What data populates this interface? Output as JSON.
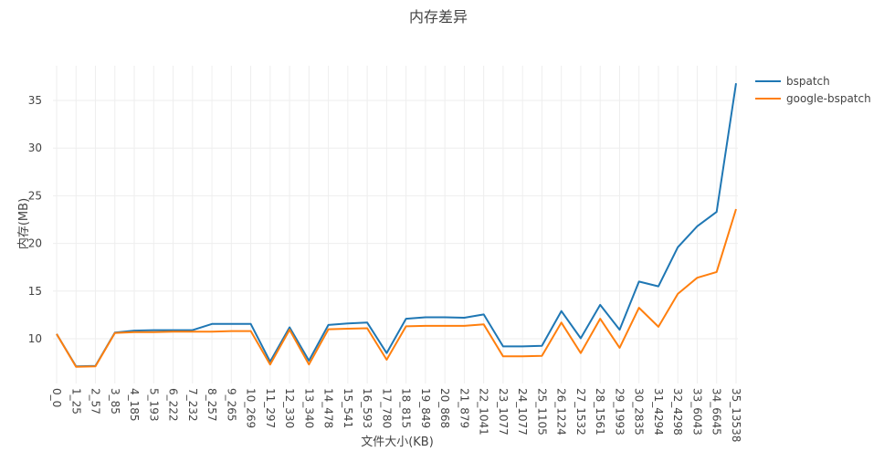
{
  "chart_data": {
    "type": "line",
    "title": "内存差异",
    "xlabel": "文件大小(KB)",
    "ylabel": "内存(MB)",
    "ylim": [
      6.0,
      38.0
    ],
    "yticks": [
      10,
      15,
      20,
      25,
      30,
      35
    ],
    "grid": true,
    "legend_position": "right-top",
    "categories": [
      "0_0",
      "1_25",
      "2_57",
      "3_85",
      "4_185",
      "5_193",
      "6_222",
      "7_232",
      "8_257",
      "9_265",
      "10_269",
      "11_297",
      "12_330",
      "13_340",
      "14_478",
      "15_541",
      "16_593",
      "17_780",
      "18_815",
      "19_849",
      "20_868",
      "21_879",
      "22_1041",
      "23_1077",
      "24_1077",
      "25_1105",
      "26_1224",
      "27_1532",
      "28_1561",
      "29_1993",
      "30_2835",
      "31_4294",
      "32_4298",
      "33_6043",
      "34_6645",
      "35_13538"
    ],
    "series": [
      {
        "name": "bspatch",
        "color": "#1f77b4",
        "values": [
          10.5,
          7.1,
          7.15,
          10.65,
          10.85,
          10.9,
          10.9,
          10.9,
          11.55,
          11.55,
          11.55,
          7.6,
          11.2,
          7.7,
          11.45,
          11.6,
          11.7,
          8.5,
          12.1,
          12.25,
          12.25,
          12.2,
          12.55,
          9.2,
          9.2,
          9.25,
          12.9,
          10.05,
          13.55,
          10.95,
          16.0,
          15.5,
          19.6,
          21.8,
          23.3,
          36.8
        ]
      },
      {
        "name": "google-bspatch",
        "color": "#ff7f0e",
        "values": [
          10.5,
          7.05,
          7.1,
          10.6,
          10.7,
          10.7,
          10.75,
          10.75,
          10.75,
          10.8,
          10.8,
          7.3,
          10.95,
          7.3,
          11.0,
          11.05,
          11.1,
          7.8,
          11.3,
          11.35,
          11.35,
          11.35,
          11.5,
          8.15,
          8.15,
          8.2,
          11.7,
          8.5,
          12.1,
          9.05,
          13.25,
          11.25,
          14.7,
          16.4,
          17.0,
          23.6
        ]
      }
    ]
  }
}
